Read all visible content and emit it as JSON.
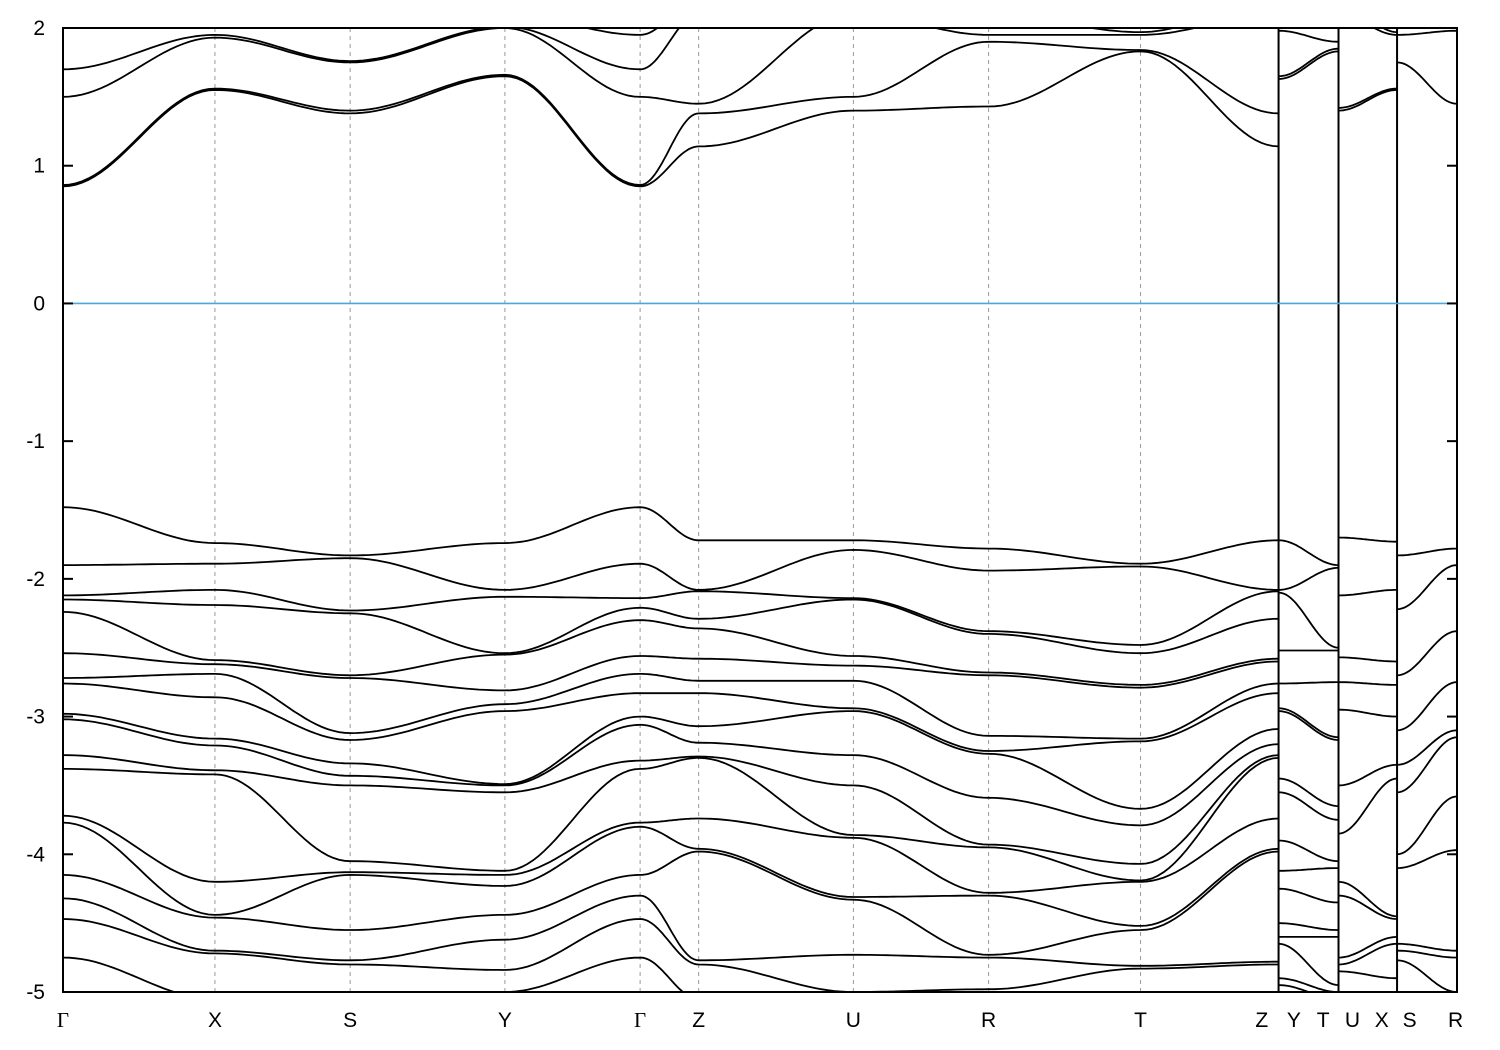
{
  "chart_data": {
    "type": "line",
    "title": "",
    "xlabel": "",
    "ylabel": "",
    "ylim": [
      -5,
      2
    ],
    "xlim": [
      0,
      10
    ],
    "yticks": [
      2,
      1,
      0,
      -1,
      -2,
      -3,
      -4,
      -5
    ],
    "grid": "vertical dashed lines at high-symmetry points",
    "fermi_level": {
      "value": 0,
      "color": "#4aa8d8"
    },
    "line_color": "#000000",
    "kpoint_labels": [
      {
        "label": "Γ",
        "k": 0
      },
      {
        "label": "X",
        "k": 1.09
      },
      {
        "label": "S",
        "k": 2.06
      },
      {
        "label": "Y",
        "k": 3.17
      },
      {
        "label": "Γ",
        "k": 4.14
      },
      {
        "label": "Z",
        "k": 4.56
      },
      {
        "label": "U",
        "k": 5.67
      },
      {
        "label": "R",
        "k": 6.64
      },
      {
        "label": "T",
        "k": 7.73
      },
      {
        "label": "Z",
        "k": 8.6
      },
      {
        "label": "Y",
        "k": 8.83
      },
      {
        "label": "T",
        "k": 9.04
      },
      {
        "label": "U",
        "k": 9.25
      },
      {
        "label": "X",
        "k": 9.46
      },
      {
        "label": "S",
        "k": 9.66
      },
      {
        "label": "R",
        "k": 9.99
      }
    ],
    "gridlines_k": [
      1.09,
      2.06,
      3.17,
      4.14,
      4.56,
      5.67,
      6.64,
      7.73
    ],
    "path_breaks_k": [
      8.72,
      9.15,
      9.57
    ],
    "segments": [
      {
        "path": "Γ-X-S-Y-Γ-Z-U-R-T-Z",
        "k": [
          0,
          1.09,
          2.06,
          3.17,
          4.14,
          4.56,
          5.67,
          6.64,
          7.73,
          8.72
        ],
        "conduction": [
          [
            0.85,
            0.86,
            1.5,
            1.7,
            2.1
          ],
          [
            1.55,
            1.56,
            1.93,
            1.95,
            2.1
          ],
          [
            1.38,
            1.4,
            1.75,
            1.76,
            2.0
          ],
          [
            1.65,
            1.66,
            2.0,
            2.01,
            2.1
          ],
          [
            0.85,
            0.86,
            1.5,
            1.7,
            1.95
          ],
          [
            1.14,
            1.38,
            1.45,
            2.1,
            2.2
          ],
          [
            1.4,
            1.5,
            2.1,
            2.2,
            2.3
          ],
          [
            1.43,
            1.9,
            1.95,
            2.1,
            2.2
          ],
          [
            1.83,
            1.84,
            1.95,
            1.97,
            2.2
          ],
          [
            1.14,
            1.38,
            2.1,
            2.2,
            2.3
          ]
        ],
        "valence": [
          [
            -1.48,
            -1.9,
            -2.12,
            -2.15,
            -2.24,
            -2.54,
            -2.72,
            -2.76,
            -2.98,
            -3.02,
            -3.28,
            -3.38,
            -3.72,
            -3.77,
            -4.15,
            -4.32,
            -4.47,
            -4.75
          ],
          [
            -1.74,
            -1.89,
            -2.08,
            -2.19,
            -2.59,
            -2.62,
            -2.69,
            -2.86,
            -3.16,
            -3.21,
            -3.39,
            -3.42,
            -4.2,
            -4.44,
            -4.46,
            -4.7,
            -4.72,
            -5.05
          ],
          [
            -1.83,
            -1.85,
            -2.23,
            -2.25,
            -2.7,
            -2.72,
            -3.12,
            -3.17,
            -3.34,
            -3.43,
            -3.5,
            -4.05,
            -4.13,
            -4.15,
            -4.55,
            -4.77,
            -4.8,
            -5.05
          ],
          [
            -1.74,
            -2.08,
            -2.13,
            -2.54,
            -2.55,
            -2.81,
            -2.91,
            -2.96,
            -3.49,
            -3.5,
            -3.55,
            -4.12,
            -4.15,
            -4.23,
            -4.44,
            -4.62,
            -4.84,
            -5.0
          ],
          [
            -1.48,
            -1.89,
            -2.14,
            -2.21,
            -2.3,
            -2.56,
            -2.69,
            -2.83,
            -3.0,
            -3.06,
            -3.32,
            -3.38,
            -3.77,
            -3.8,
            -4.15,
            -4.3,
            -4.47,
            -4.75
          ],
          [
            -1.72,
            -2.08,
            -2.09,
            -2.29,
            -2.36,
            -2.58,
            -2.74,
            -2.83,
            -3.07,
            -3.19,
            -3.29,
            -3.3,
            -3.74,
            -3.96,
            -3.98,
            -4.77,
            -4.8,
            -5.05
          ],
          [
            -1.72,
            -1.79,
            -2.14,
            -2.15,
            -2.56,
            -2.63,
            -2.74,
            -2.94,
            -2.96,
            -3.28,
            -3.5,
            -3.86,
            -3.88,
            -4.31,
            -4.33,
            -4.73,
            -5.0,
            -5.05
          ],
          [
            -1.78,
            -1.94,
            -2.38,
            -2.4,
            -2.68,
            -2.7,
            -3.14,
            -3.25,
            -3.27,
            -3.59,
            -3.93,
            -3.95,
            -4.28,
            -4.3,
            -4.73,
            -4.75,
            -4.98,
            -5.05
          ],
          [
            -1.89,
            -1.91,
            -2.48,
            -2.54,
            -2.77,
            -2.79,
            -3.16,
            -3.18,
            -3.67,
            -3.79,
            -4.07,
            -4.19,
            -4.2,
            -4.52,
            -4.55,
            -4.81,
            -4.83,
            -5.05
          ],
          [
            -1.72,
            -2.08,
            -2.09,
            -2.29,
            -2.58,
            -2.6,
            -2.76,
            -2.83,
            -3.09,
            -3.2,
            -3.28,
            -3.3,
            -3.74,
            -3.96,
            -3.98,
            -4.78,
            -4.8,
            -5.05
          ]
        ]
      },
      {
        "path": "Y-T",
        "k": [
          8.72,
          9.15
        ],
        "conduction": [
          [
            1.63,
            1.65,
            1.98,
            2.0,
            2.1
          ],
          [
            1.83,
            1.85,
            1.9,
            2.1,
            2.2
          ]
        ],
        "valence": [
          [
            -1.72,
            -2.08,
            -2.1,
            -2.52,
            -2.76,
            -2.94,
            -2.96,
            -3.45,
            -3.55,
            -3.9,
            -4.12,
            -4.25,
            -4.5,
            -4.6,
            -4.65,
            -4.9,
            -4.95,
            -5.0
          ],
          [
            -1.9,
            -1.92,
            -2.5,
            -2.52,
            -2.75,
            -3.15,
            -3.17,
            -3.65,
            -3.75,
            -4.05,
            -4.1,
            -4.35,
            -4.55,
            -4.6,
            -4.95,
            -5.0,
            -5.05,
            -5.1
          ]
        ]
      },
      {
        "path": "U-X",
        "k": [
          9.15,
          9.57
        ],
        "conduction": [
          [
            1.4,
            1.42,
            2.1,
            2.2,
            2.3
          ],
          [
            1.55,
            1.56,
            1.95,
            1.97,
            2.1
          ]
        ],
        "valence": [
          [
            -1.7,
            -2.12,
            -2.57,
            -2.75,
            -2.95,
            -3.5,
            -3.85,
            -4.2,
            -4.3,
            -4.75,
            -4.8,
            -4.85,
            -5.0,
            -5.05
          ],
          [
            -1.73,
            -2.08,
            -2.6,
            -2.77,
            -3.0,
            -3.35,
            -3.45,
            -4.45,
            -4.47,
            -4.6,
            -4.65,
            -4.9,
            -5.0,
            -5.05
          ]
        ]
      },
      {
        "path": "S-R",
        "k": [
          9.57,
          10
        ],
        "conduction": [
          [
            1.75,
            1.95,
            2.1,
            2.2,
            2.3
          ],
          [
            1.45,
            1.98,
            2.1,
            2.2,
            2.3
          ]
        ],
        "valence": [
          [
            -1.83,
            -2.22,
            -2.7,
            -3.1,
            -3.35,
            -3.55,
            -4.0,
            -4.1,
            -4.65,
            -4.7,
            -4.77,
            -5.05
          ],
          [
            -1.78,
            -1.9,
            -2.38,
            -2.75,
            -3.1,
            -3.15,
            -3.58,
            -3.97,
            -4.7,
            -4.75,
            -5.0,
            -5.05
          ]
        ]
      }
    ]
  }
}
